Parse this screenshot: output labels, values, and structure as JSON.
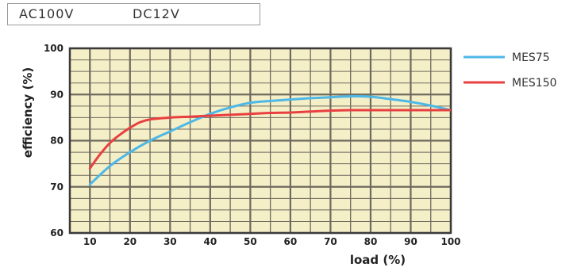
{
  "conditions": {
    "input": "AC100V",
    "output": "DC12V"
  },
  "chart_data": {
    "type": "line",
    "title": "",
    "xlabel": "load (%)",
    "ylabel": "efficiency (%)",
    "xlim": [
      5,
      100
    ],
    "ylim": [
      60,
      100
    ],
    "xticks": [
      10,
      20,
      30,
      40,
      50,
      60,
      70,
      80,
      90,
      100
    ],
    "yticks": [
      60,
      70,
      80,
      90,
      100
    ],
    "grid": true,
    "legend": "right",
    "background": "#f5efc8",
    "gridline_color": "#6e6a5e",
    "series": [
      {
        "name": "MES75",
        "color": "#4db8e6",
        "x": [
          10,
          15,
          20,
          25,
          30,
          35,
          40,
          45,
          50,
          55,
          60,
          65,
          70,
          75,
          80,
          85,
          90,
          95,
          100
        ],
        "y": [
          70.5,
          74.5,
          77.5,
          80.0,
          82.0,
          84.0,
          85.8,
          87.2,
          88.2,
          88.6,
          88.9,
          89.2,
          89.4,
          89.6,
          89.5,
          89.0,
          88.4,
          87.6,
          86.6
        ]
      },
      {
        "name": "MES150",
        "color": "#e84040",
        "x": [
          10,
          12.5,
          15,
          17.5,
          20,
          22.5,
          25,
          30,
          35,
          40,
          45,
          50,
          55,
          60,
          65,
          70,
          75,
          80,
          85,
          90,
          95,
          100
        ],
        "y": [
          74.0,
          77.0,
          79.5,
          81.3,
          82.8,
          84.0,
          84.6,
          85.0,
          85.2,
          85.4,
          85.6,
          85.8,
          86.0,
          86.1,
          86.3,
          86.5,
          86.6,
          86.6,
          86.6,
          86.6,
          86.6,
          86.6
        ]
      }
    ]
  }
}
